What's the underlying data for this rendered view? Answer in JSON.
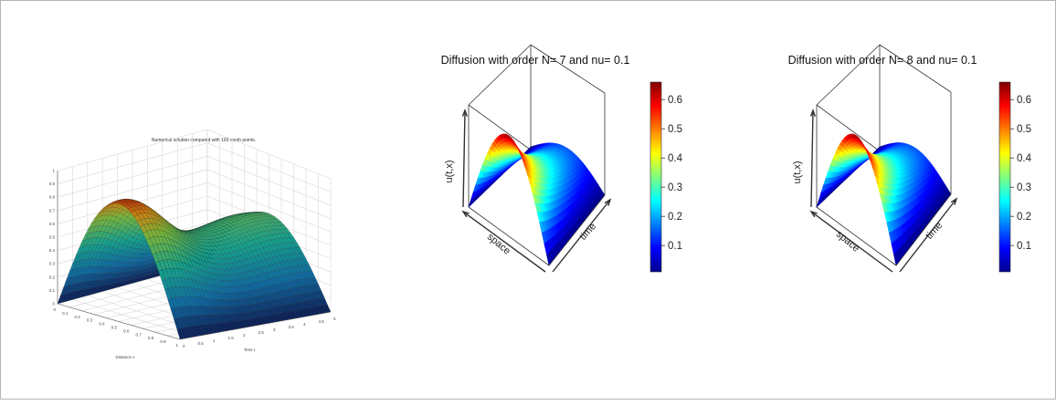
{
  "chart_data": [
    {
      "type": "surface",
      "title": "Numerical solution computed with 100 mesh points.",
      "xlabel": "Distance x",
      "ylabel": "Time t",
      "zlabel": "",
      "x_ticks": [
        "0",
        "0.1",
        "0.2",
        "0.3",
        "0.4",
        "0.5",
        "0.6",
        "0.7",
        "0.8",
        "0.9",
        "1"
      ],
      "t_ticks": [
        "0",
        "0.5",
        "1",
        "1.5",
        "2",
        "2.5",
        "3",
        "3.5",
        "4",
        "4.5",
        "5"
      ],
      "z_ticks": [
        "0",
        "0.1",
        "0.2",
        "0.3",
        "0.4",
        "0.5",
        "0.6",
        "0.7",
        "0.8",
        "0.9",
        "1"
      ],
      "zlim": [
        0,
        1
      ],
      "peak_z": 0.9,
      "surface": "z = peak * sin(pi * x) * envelope(t)",
      "colormap": "parula",
      "grid": true
    },
    {
      "type": "surface",
      "title": "Diffusion with order N= 7  and nu= 0.1",
      "xlabel": "space",
      "ylabel": "time",
      "zlabel": "u(t,x)",
      "colorbar_ticks": [
        0.1,
        0.2,
        0.3,
        0.4,
        0.5,
        0.6
      ],
      "colorbar_labels": [
        "0.1",
        "0.2",
        "0.3",
        "0.4",
        "0.5",
        "0.6"
      ],
      "zlim": [
        0.01,
        0.66
      ],
      "peak_z": 0.65,
      "colormap": "jet"
    },
    {
      "type": "surface",
      "title": "Diffusion with order N= 8  and nu= 0.1",
      "xlabel": "space",
      "ylabel": "time",
      "zlabel": "u(t,x)",
      "colorbar_ticks": [
        0.1,
        0.2,
        0.3,
        0.4,
        0.5,
        0.6
      ],
      "colorbar_labels": [
        "0.1",
        "0.2",
        "0.3",
        "0.4",
        "0.5",
        "0.6"
      ],
      "zlim": [
        0.01,
        0.66
      ],
      "peak_z": 0.65,
      "colormap": "jet"
    }
  ]
}
